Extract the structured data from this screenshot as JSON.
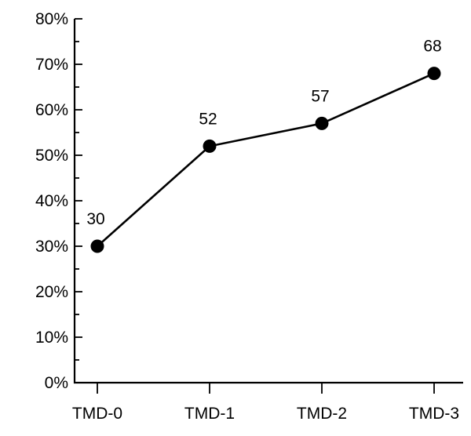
{
  "chart_data": {
    "type": "line",
    "title": "",
    "xlabel": "",
    "ylabel": "",
    "categories": [
      "TMD-0",
      "TMD-1",
      "TMD-2",
      "TMD-3"
    ],
    "series": [
      {
        "values": [
          30,
          52,
          57,
          68
        ]
      }
    ],
    "data_labels": [
      "30",
      "52",
      "57",
      "68"
    ],
    "y_tick_values": [
      0,
      10,
      20,
      30,
      40,
      50,
      60,
      70,
      80
    ],
    "y_tick_labels": [
      "0%",
      "10%",
      "20%",
      "30%",
      "40%",
      "50%",
      "60%",
      "70%",
      "80%"
    ],
    "ylim": [
      0,
      80
    ],
    "grid": false,
    "legend": "none",
    "colors": {
      "line": "#000000",
      "marker": "#000000",
      "axis": "#000000"
    }
  }
}
